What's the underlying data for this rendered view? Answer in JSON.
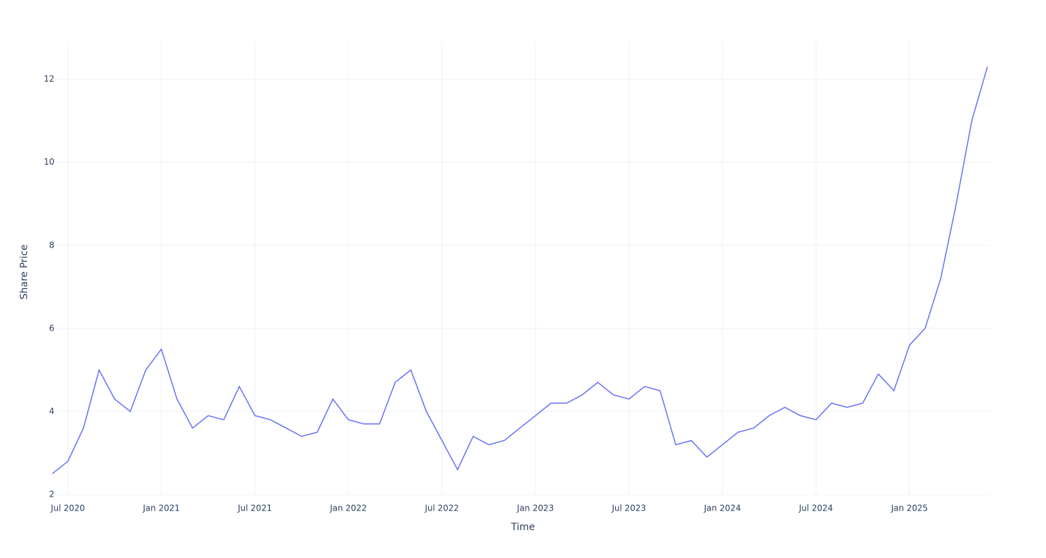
{
  "chart_data": {
    "type": "line",
    "x_label": "Time",
    "y_label": "Share Price",
    "x": [
      "2020-06",
      "2020-07",
      "2020-08",
      "2020-09",
      "2020-10",
      "2020-11",
      "2020-12",
      "2021-01",
      "2021-02",
      "2021-03",
      "2021-04",
      "2021-05",
      "2021-06",
      "2021-07",
      "2021-08",
      "2021-09",
      "2021-10",
      "2021-11",
      "2021-12",
      "2022-01",
      "2022-02",
      "2022-03",
      "2022-04",
      "2022-05",
      "2022-06",
      "2022-07",
      "2022-08",
      "2022-09",
      "2022-10",
      "2022-11",
      "2022-12",
      "2023-01",
      "2023-02",
      "2023-03",
      "2023-04",
      "2023-05",
      "2023-06",
      "2023-07",
      "2023-08",
      "2023-09",
      "2023-10",
      "2023-11",
      "2023-12",
      "2024-01",
      "2024-02",
      "2024-03",
      "2024-04",
      "2024-05",
      "2024-06",
      "2024-07",
      "2024-08",
      "2024-09",
      "2024-10",
      "2024-11",
      "2024-12",
      "2025-01",
      "2025-02",
      "2025-03",
      "2025-04",
      "2025-05",
      "2025-06"
    ],
    "series": [
      {
        "name": "Share Price",
        "color": "#636efa",
        "values": [
          2.5,
          2.8,
          3.6,
          5.0,
          4.3,
          4.0,
          5.0,
          5.5,
          4.3,
          3.6,
          3.9,
          3.8,
          4.6,
          3.9,
          3.8,
          3.6,
          3.4,
          3.5,
          4.3,
          3.8,
          3.7,
          3.7,
          4.7,
          5.0,
          4.0,
          3.3,
          2.6,
          3.4,
          3.2,
          3.3,
          3.6,
          3.9,
          4.2,
          4.2,
          4.4,
          4.7,
          4.4,
          4.3,
          4.6,
          4.5,
          3.2,
          3.3,
          2.9,
          3.2,
          3.5,
          3.6,
          3.9,
          4.1,
          3.9,
          3.8,
          4.2,
          4.1,
          4.2,
          4.9,
          4.5,
          5.6,
          6.0,
          7.2,
          9.0,
          11.0,
          12.3
        ]
      }
    ],
    "xlim": [
      "2020-06",
      "2025-06"
    ],
    "xticks": [
      {
        "value": "2020-07",
        "label": "Jul 2020"
      },
      {
        "value": "2021-01",
        "label": "Jan 2021"
      },
      {
        "value": "2021-07",
        "label": "Jul 2021"
      },
      {
        "value": "2022-01",
        "label": "Jan 2022"
      },
      {
        "value": "2022-07",
        "label": "Jul 2022"
      },
      {
        "value": "2023-01",
        "label": "Jan 2023"
      },
      {
        "value": "2023-07",
        "label": "Jul 2023"
      },
      {
        "value": "2024-01",
        "label": "Jan 2024"
      },
      {
        "value": "2024-07",
        "label": "Jul 2024"
      },
      {
        "value": "2025-01",
        "label": "Jan 2025"
      }
    ],
    "ylim": [
      2,
      12.9
    ],
    "yticks": [
      2,
      4,
      6,
      8,
      10,
      12
    ],
    "grid": true
  }
}
